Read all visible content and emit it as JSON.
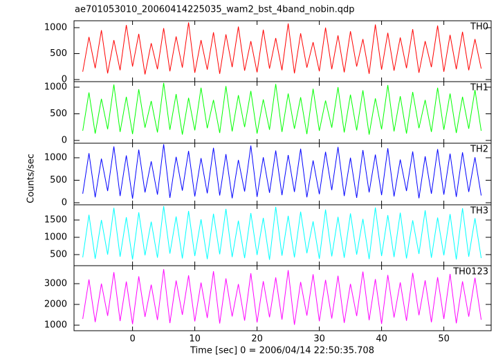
{
  "chart_data": [
    {
      "type": "line",
      "title": "ae701053010_20060414225035_wam2_bst_4band_nobin.qdp",
      "ylabel": "Counts/sec",
      "x": [
        -8,
        -7,
        -6,
        -5,
        -4,
        -3,
        -2,
        -1,
        0,
        1,
        2,
        3,
        4,
        5,
        6,
        7,
        8,
        9,
        10,
        11,
        12,
        13,
        14,
        15,
        16,
        17,
        18,
        19,
        20,
        21,
        22,
        23,
        24,
        25,
        26,
        27,
        28,
        29,
        30,
        31,
        32,
        33,
        34,
        35,
        36,
        37,
        38,
        39,
        40,
        41,
        42,
        43,
        44,
        45,
        46,
        47,
        48,
        49,
        50,
        51,
        52,
        53,
        54,
        55,
        56
      ],
      "xlim": [
        -9.4,
        57.6
      ],
      "xticks": [
        0,
        10,
        20,
        30,
        40,
        50
      ],
      "ylim": [
        -40,
        1133
      ],
      "yticks": [
        0,
        500,
        1000
      ],
      "series": [
        {
          "name": "TH0",
          "color": "#ff0000",
          "values": [
            150,
            820,
            220,
            950,
            120,
            760,
            180,
            1050,
            250,
            880,
            100,
            700,
            200,
            990,
            160,
            830,
            230,
            1100,
            130,
            760,
            190,
            910,
            110,
            870,
            240,
            1020,
            170,
            740,
            140,
            960,
            210,
            800,
            180,
            1080,
            120,
            890,
            230,
            720,
            160,
            1000,
            200,
            850,
            140,
            930,
            250,
            780,
            110,
            1060,
            190,
            900,
            170,
            810,
            220,
            970,
            130,
            740,
            240,
            1040,
            150,
            860,
            200,
            920,
            180,
            780,
            210
          ]
        }
      ]
    },
    {
      "type": "line",
      "x": [
        -8,
        -7,
        -6,
        -5,
        -4,
        -3,
        -2,
        -1,
        0,
        1,
        2,
        3,
        4,
        5,
        6,
        7,
        8,
        9,
        10,
        11,
        12,
        13,
        14,
        15,
        16,
        17,
        18,
        19,
        20,
        21,
        22,
        23,
        24,
        25,
        26,
        27,
        28,
        29,
        30,
        31,
        32,
        33,
        34,
        35,
        36,
        37,
        38,
        39,
        40,
        41,
        42,
        43,
        44,
        45,
        46,
        47,
        48,
        49,
        50,
        51,
        52,
        53,
        54,
        55,
        56
      ],
      "xlim": [
        -9.4,
        57.6
      ],
      "xticks": [
        0,
        10,
        20,
        30,
        40,
        50
      ],
      "ylim": [
        -52,
        1104
      ],
      "yticks": [
        0,
        500,
        1000
      ],
      "series": [
        {
          "name": "TH1",
          "color": "#00ff00",
          "values": [
            180,
            900,
            130,
            780,
            210,
            1050,
            160,
            820,
            120,
            960,
            240,
            740,
            150,
            1080,
            200,
            870,
            110,
            800,
            190,
            990,
            230,
            760,
            140,
            1020,
            170,
            850,
            250,
            930,
            130,
            770,
            200,
            1060,
            160,
            880,
            220,
            810,
            120,
            970,
            180,
            750,
            240,
            1000,
            150,
            860,
            190,
            940,
            110,
            790,
            210,
            1040,
            170,
            830,
            130,
            910,
            230,
            760,
            160,
            990,
            200,
            880,
            140,
            820,
            220,
            950,
            180
          ]
        }
      ]
    },
    {
      "type": "line",
      "x": [
        -8,
        -7,
        -6,
        -5,
        -4,
        -3,
        -2,
        -1,
        0,
        1,
        2,
        3,
        4,
        5,
        6,
        7,
        8,
        9,
        10,
        11,
        12,
        13,
        14,
        15,
        16,
        17,
        18,
        19,
        20,
        21,
        22,
        23,
        24,
        25,
        26,
        27,
        28,
        29,
        30,
        31,
        32,
        33,
        34,
        35,
        36,
        37,
        38,
        39,
        40,
        41,
        42,
        43,
        44,
        45,
        46,
        47,
        48,
        49,
        50,
        51,
        52,
        53,
        54,
        55,
        56
      ],
      "xlim": [
        -9.4,
        57.6
      ],
      "xticks": [
        0,
        10,
        20,
        30,
        40,
        50
      ],
      "ylim": [
        -46,
        1323
      ],
      "yticks": [
        0,
        500,
        1000
      ],
      "series": [
        {
          "name": "TH2",
          "color": "#0000ff",
          "values": [
            200,
            1100,
            120,
            980,
            260,
            1250,
            150,
            1050,
            90,
            1180,
            230,
            920,
            180,
            1300,
            110,
            1020,
            270,
            1150,
            140,
            990,
            210,
            1220,
            160,
            1080,
            100,
            950,
            250,
            1270,
            130,
            1010,
            220,
            1160,
            170,
            1060,
            240,
            1200,
            120,
            940,
            190,
            1130,
            280,
            1240,
            150,
            1000,
            110,
            1170,
            230,
            1070,
            170,
            1210,
            140,
            960,
            260,
            1140,
            100,
            1030,
            200,
            1190,
            180,
            1090,
            130,
            1120,
            240,
            1010,
            160
          ]
        }
      ]
    },
    {
      "type": "line",
      "x": [
        -8,
        -7,
        -6,
        -5,
        -4,
        -3,
        -2,
        -1,
        0,
        1,
        2,
        3,
        4,
        5,
        6,
        7,
        8,
        9,
        10,
        11,
        12,
        13,
        14,
        15,
        16,
        17,
        18,
        19,
        20,
        21,
        22,
        23,
        24,
        25,
        26,
        27,
        28,
        29,
        30,
        31,
        32,
        33,
        34,
        35,
        36,
        37,
        38,
        39,
        40,
        41,
        42,
        43,
        44,
        45,
        46,
        47,
        48,
        49,
        50,
        51,
        52,
        53,
        54,
        55,
        56
      ],
      "xlim": [
        -9.4,
        57.6
      ],
      "xticks": [
        0,
        10,
        20,
        30,
        40,
        50
      ],
      "ylim": [
        180,
        1940
      ],
      "yticks": [
        500,
        1000,
        1500
      ],
      "series": [
        {
          "name": "TH3",
          "color": "#00ffff",
          "values": [
            420,
            1650,
            380,
            1500,
            500,
            1850,
            440,
            1580,
            360,
            1720,
            480,
            1450,
            410,
            1900,
            530,
            1600,
            390,
            1760,
            460,
            1520,
            370,
            1680,
            510,
            1820,
            430,
            1480,
            400,
            1700,
            490,
            1560,
            350,
            1880,
            470,
            1620,
            420,
            1740,
            540,
            1460,
            380,
            1800,
            450,
            1590,
            410,
            1690,
            500,
            1530,
            370,
            1860,
            460,
            1640,
            430,
            1710,
            390,
            1490,
            520,
            1780,
            410,
            1570,
            480,
            1670,
            360,
            1840,
            440,
            1550,
            400
          ]
        }
      ]
    },
    {
      "type": "line",
      "xlabel": "Time [sec] 0 = 2006/04/14 22:50:35.708",
      "x": [
        -8,
        -7,
        -6,
        -5,
        -4,
        -3,
        -2,
        -1,
        0,
        1,
        2,
        3,
        4,
        5,
        6,
        7,
        8,
        9,
        10,
        11,
        12,
        13,
        14,
        15,
        16,
        17,
        18,
        19,
        20,
        21,
        22,
        23,
        24,
        25,
        26,
        27,
        28,
        29,
        30,
        31,
        32,
        33,
        34,
        35,
        36,
        37,
        38,
        39,
        40,
        41,
        42,
        43,
        44,
        45,
        46,
        47,
        48,
        49,
        50,
        51,
        52,
        53,
        54,
        55,
        56
      ],
      "xlim": [
        -9.4,
        57.6
      ],
      "xticks": [
        0,
        10,
        20,
        30,
        40,
        50
      ],
      "ylim": [
        733,
        3867
      ],
      "yticks": [
        1000,
        2000,
        3000
      ],
      "series": [
        {
          "name": "TH0123",
          "color": "#ff00ff",
          "values": [
            1300,
            3200,
            1150,
            3000,
            1450,
            3550,
            1200,
            3100,
            1050,
            3350,
            1400,
            2950,
            1250,
            3700,
            1100,
            3150,
            1500,
            3400,
            1180,
            3050,
            1350,
            3600,
            1080,
            3250,
            1420,
            2980,
            1220,
            3500,
            1130,
            3120,
            1380,
            3300,
            1270,
            3650,
            1020,
            3080,
            1460,
            3450,
            1190,
            3180,
            1320,
            3380,
            1110,
            2990,
            1440,
            3580,
            1240,
            3220,
            1060,
            3420,
            1370,
            3060,
            1210,
            3520,
            1480,
            3160,
            1140,
            3310,
            1300,
            3470,
            1090,
            3110,
            1410,
            3280,
            1260
          ]
        }
      ]
    }
  ]
}
